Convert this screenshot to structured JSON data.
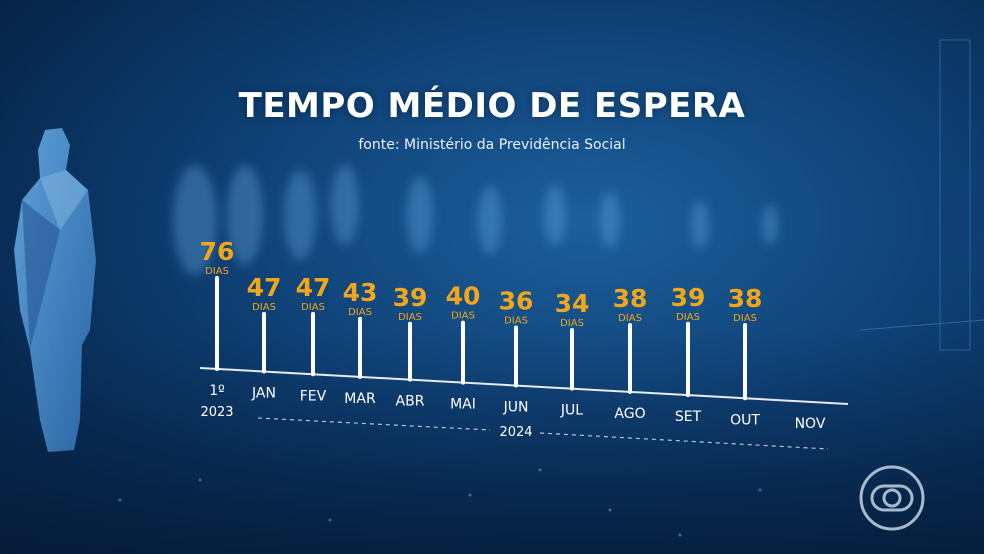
{
  "title": "TEMPO MÉDIO DE ESPERA",
  "source": "fonte: Ministério da Previdência Social",
  "colors": {
    "value": "#f2a71b",
    "axis": "#ffffff",
    "label": "#ffffff",
    "dashed": "#dfe9f2"
  },
  "logo_icon": "globo-logo-icon",
  "chart_data": {
    "type": "lollipop-timeline",
    "unit": "DIAS",
    "points": [
      {
        "label": "1º",
        "sublabel": "2023",
        "value": 76
      },
      {
        "label": "JAN",
        "value": 47
      },
      {
        "label": "FEV",
        "value": 47
      },
      {
        "label": "MAR",
        "value": 43
      },
      {
        "label": "ABR",
        "value": 39
      },
      {
        "label": "MAI",
        "value": 40
      },
      {
        "label": "JUN",
        "value": 36
      },
      {
        "label": "JUL",
        "value": 34
      },
      {
        "label": "AGO",
        "value": 38
      },
      {
        "label": "SET",
        "value": 39
      },
      {
        "label": "OUT",
        "value": 38
      },
      {
        "label": "NOV",
        "value": null
      }
    ],
    "year_group": {
      "label": "2024",
      "from": "JAN",
      "to": "NOV"
    }
  }
}
